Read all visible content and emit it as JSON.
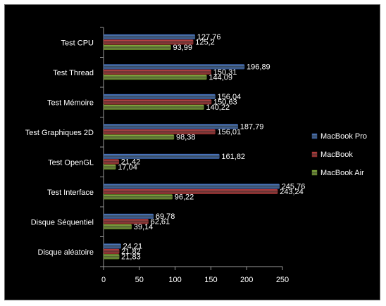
{
  "chart_data": {
    "type": "bar",
    "orientation": "horizontal",
    "categories": [
      "Test CPU",
      "Test Thread",
      "Test Mémoire",
      "Test Graphiques 2D",
      "Test OpenGL",
      "Test Interface",
      "Disque Séquentiel",
      "Disque aléatoire"
    ],
    "series": [
      {
        "name": "MacBook Pro",
        "color": "#4a7ee0",
        "values": [
          127.76,
          196.89,
          156.04,
          187.79,
          161.82,
          245.76,
          69.78,
          24.21
        ],
        "labels": [
          "127,76",
          "196,89",
          "156,04",
          "187,79",
          "161,82",
          "245,76",
          "69,78",
          "24,21"
        ]
      },
      {
        "name": "MacBook",
        "color": "#d93b3b",
        "values": [
          125.2,
          150.31,
          150.63,
          156.01,
          21.42,
          243.24,
          62.61,
          21.82
        ],
        "labels": [
          "125,2",
          "150,31",
          "150,63",
          "156,01",
          "21,42",
          "243,24",
          "62,61",
          "21,82"
        ]
      },
      {
        "name": "MacBook Air",
        "color": "#8fc43a",
        "values": [
          93.99,
          144.09,
          140.22,
          98.38,
          17.04,
          96.22,
          39.14,
          21.83
        ],
        "labels": [
          "93,99",
          "144,09",
          "140,22",
          "98,38",
          "17,04",
          "96,22",
          "39,14",
          "21,83"
        ]
      }
    ],
    "xlim": [
      0,
      250
    ],
    "xticks": [
      "0",
      "50",
      "100",
      "150",
      "200",
      "250"
    ],
    "legend": "right",
    "background": "#000000",
    "text_color": "#ffffff"
  }
}
